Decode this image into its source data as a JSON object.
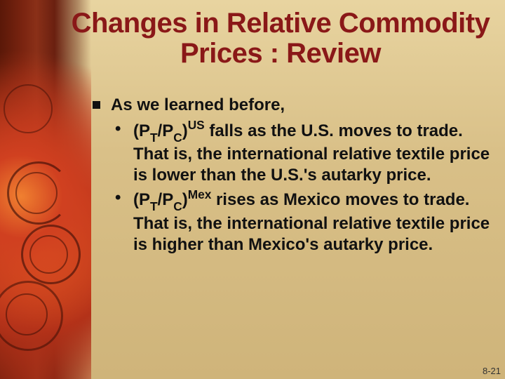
{
  "title": "Changes in Relative Commodity Prices : Review",
  "bullets": {
    "lvl1": "As we learned before,",
    "sub1_prefix": "(P",
    "sub1_t": "T",
    "sub1_slash": "/P",
    "sub1_c": "C",
    "sub1_paren": ")",
    "sub1_sup": "US",
    "sub1_rest": " falls as the U.S. moves to trade.  That is, the international relative textile price is lower than the U.S.'s autarky price.",
    "sub2_prefix": "(P",
    "sub2_t": "T",
    "sub2_slash": "/P",
    "sub2_c": "C",
    "sub2_paren": ")",
    "sub2_sup": "Mex",
    "sub2_rest": " rises as Mexico moves to trade. That is, the international relative textile price is higher than Mexico's autarky price."
  },
  "slideNumber": "8-21",
  "colors": {
    "title": "#8a1818",
    "text": "#111111",
    "bg_top": "#e8d4a0",
    "bg_bottom": "#cfb47a"
  }
}
